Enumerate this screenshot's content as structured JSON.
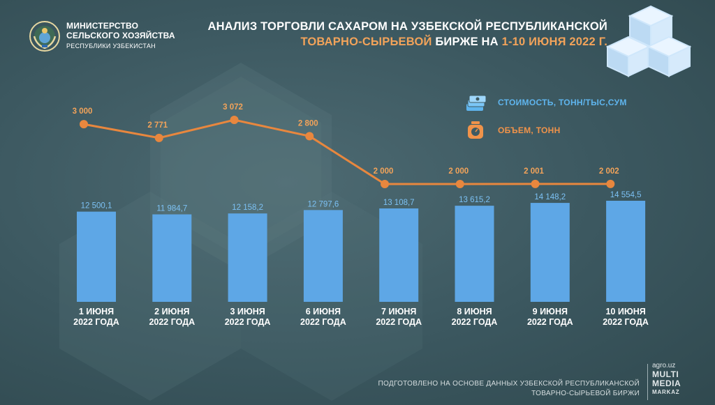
{
  "header": {
    "ministry_line1": "МИНИСТЕРСТВО",
    "ministry_line2": "СЕЛЬСКОГО ХОЗЯЙСТВА",
    "ministry_line3": "РЕСПУБЛИКИ УЗБЕКИСТАН",
    "title_line1": "АНАЛИЗ ТОРГОВЛИ САХАРОМ НА УЗБЕКСКОЙ РЕСПУБЛИКАНСКОЙ",
    "title_line2_orange": "ТОВАРНО-СЫРЬЕВОЙ",
    "title_line2_mid": " БИРЖЕ НА ",
    "title_line2_dates": "1-10 ИЮНЯ 2022 Г."
  },
  "legend": {
    "cost_label": "СТОИМОСТЬ, ТОНН/ТЫС,СУМ",
    "volume_label": "ОБЪЕМ, ТОНН"
  },
  "footer": {
    "source_line1": "ПОДГОТОВЛЕНО НА ОСНОВЕ ДАННЫХ УЗБЕКСКОЙ РЕСПУБЛИКАНСКОЙ",
    "source_line2": "ТОВАРНО-СЫРЬЕВОЙ БИРЖИ",
    "brand_site": "agro.uz",
    "brand_multi": "MULTI",
    "brand_media": "MEDIA",
    "brand_markaz": "MARKAZ"
  },
  "colors": {
    "bar": "#5ea7e6",
    "line": "#e8873e",
    "bar_label": "#7cc1f4",
    "line_label": "#f2a35a"
  },
  "chart_data": {
    "type": "bar+line",
    "title": "АНАЛИЗ ТОРГОВЛИ САХАРОМ НА УЗБЕКСКОЙ РЕСПУБЛИКАНСКОЙ ТОВАРНО-СЫРЬЕВОЙ БИРЖЕ НА 1-10 ИЮНЯ 2022 Г.",
    "categories": [
      {
        "line1": "1 ИЮНЯ",
        "line2": "2022 ГОДА"
      },
      {
        "line1": "2 ИЮНЯ",
        "line2": "2022 ГОДА"
      },
      {
        "line1": "3 ИЮНЯ",
        "line2": "2022 ГОДА"
      },
      {
        "line1": "6 ИЮНЯ",
        "line2": "2022 ГОДА"
      },
      {
        "line1": "7 ИЮНЯ",
        "line2": "2022 ГОДА"
      },
      {
        "line1": "8 ИЮНЯ",
        "line2": "2022 ГОДА"
      },
      {
        "line1": "9 ИЮНЯ",
        "line2": "2022 ГОДА"
      },
      {
        "line1": "10 ИЮНЯ",
        "line2": "2022 ГОДА"
      }
    ],
    "series": [
      {
        "name": "СТОИМОСТЬ, ТОНН/ТЫС,СУМ",
        "type": "bar",
        "values": [
          12500.1,
          11984.7,
          12158.2,
          12797.6,
          13108.7,
          13615.2,
          14148.2,
          14554.5
        ],
        "labels": [
          "12 500,1",
          "11 984,7",
          "12 158,2",
          "12 797,6",
          "13 108,7",
          "13 615,2",
          "14 148,2",
          "14 554,5"
        ]
      },
      {
        "name": "ОБЪЕМ, ТОНН",
        "type": "line",
        "values": [
          3000,
          2771,
          3072,
          2800,
          2000,
          2000,
          2001,
          2002
        ],
        "labels": [
          "3 000",
          "2 771",
          "3 072",
          "2 800",
          "2 000",
          "2 000",
          "2 001",
          "2 002"
        ]
      }
    ],
    "bar_axis_range": [
      0,
      14554.5
    ],
    "line_axis_range": [
      2000,
      3072
    ],
    "grid": false,
    "legend_position": "top-right"
  }
}
